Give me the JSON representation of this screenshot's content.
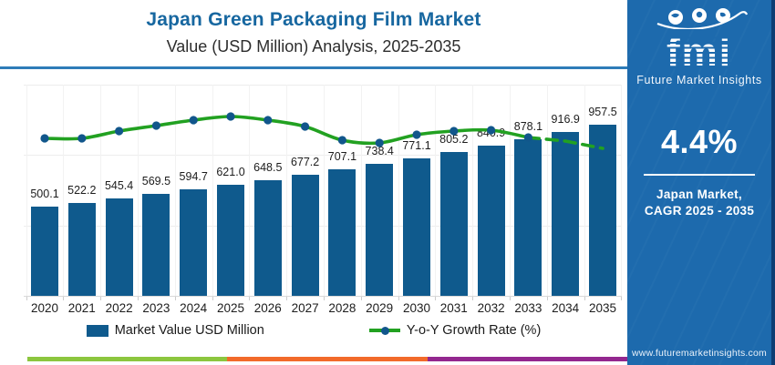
{
  "header": {
    "title": "Japan Green Packaging Film Market",
    "subtitle": "Value (USD Million) Analysis, 2025-2035"
  },
  "chart_data": {
    "type": "bar",
    "title": "Japan Green Packaging Film Market Value (USD Million) Analysis, 2025-2035",
    "categories": [
      "2020",
      "2021",
      "2022",
      "2023",
      "2024",
      "2025",
      "2026",
      "2027",
      "2028",
      "2029",
      "2030",
      "2031",
      "2032",
      "2033",
      "2034",
      "2035"
    ],
    "series": [
      {
        "name": "Market Value USD Million",
        "type": "bar",
        "values": [
          500.1,
          522.2,
          545.4,
          569.5,
          594.7,
          621.0,
          648.5,
          677.2,
          707.1,
          738.4,
          771.1,
          805.2,
          840.9,
          878.1,
          916.9,
          957.5
        ]
      },
      {
        "name": "Y-o-Y Growth Rate (%)",
        "type": "line",
        "values": [
          4.4,
          4.4,
          4.48,
          4.54,
          4.6,
          4.64,
          4.6,
          4.53,
          4.38,
          4.35,
          4.44,
          4.48,
          4.49,
          4.41,
          4.37,
          4.29
        ],
        "values_estimated_from_pixels": true,
        "dashed_from_index": 13,
        "markers_through_index": 13
      }
    ],
    "value_labels_shown": true,
    "xlabel": "",
    "ylabel": "",
    "ylim": [
      0,
      1050
    ],
    "grid": "light-horizontal-and-vertical",
    "legend_position": "bottom"
  },
  "legend": {
    "items": [
      {
        "label": "Market Value USD Million",
        "swatch": "bar"
      },
      {
        "label": "Y-o-Y Growth Rate (%)",
        "swatch": "line"
      }
    ]
  },
  "sidebar": {
    "logo_text": "fmi",
    "logo_tagline": "Future Market Insights",
    "cagr": "4.4%",
    "market_line1": "Japan Market,",
    "market_line2": "CAGR 2025 - 2035",
    "website": "www.futuremarketinsights.com"
  },
  "colors": {
    "bar": "#0f5a8d",
    "line": "#22a121",
    "marker": "#11568b",
    "title": "#1767a0",
    "top_divider": "#2e7cb8",
    "sidebar_bg": "#1d6aad",
    "edge_strip": "#0d3e74",
    "footer_stripe": [
      "#8cc63e",
      "#f26a2a",
      "#93278f"
    ]
  }
}
